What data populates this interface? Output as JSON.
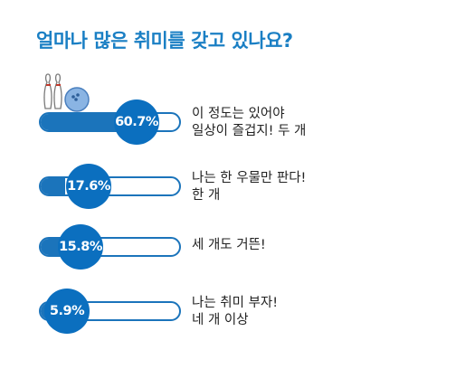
{
  "title": "얼마나 많은 취미를 갖고 있나요?",
  "colors": {
    "accent": "#1b74bb",
    "title": "#1a7fc4",
    "bubble": "#0b6fbf"
  },
  "icon": "bowling-icon",
  "chart_data": {
    "type": "bar",
    "title": "얼마나 많은 취미를 갖고 있나요?",
    "unit": "%",
    "categories": [
      "이 정도는 있어야 일상이 즐겁지! 두 개",
      "나는 한 우물만 판다! 한 개",
      "세 개도 거뜬!",
      "나는 취미 부자! 네 개 이상"
    ],
    "values": [
      60.7,
      17.6,
      15.8,
      5.9
    ],
    "value_labels": [
      "60.7%",
      "17.6%",
      "15.8%",
      "5.9%"
    ],
    "label_lines": [
      [
        "이 정도는 있어야",
        "일상이 즐겁지! 두 개"
      ],
      [
        "나는 한 우물만 판다!",
        "한 개"
      ],
      [
        "세 개도 거뜬!"
      ],
      [
        "나는 취미 부자!",
        "네 개 이상"
      ]
    ],
    "xlim": [
      0,
      100
    ]
  }
}
